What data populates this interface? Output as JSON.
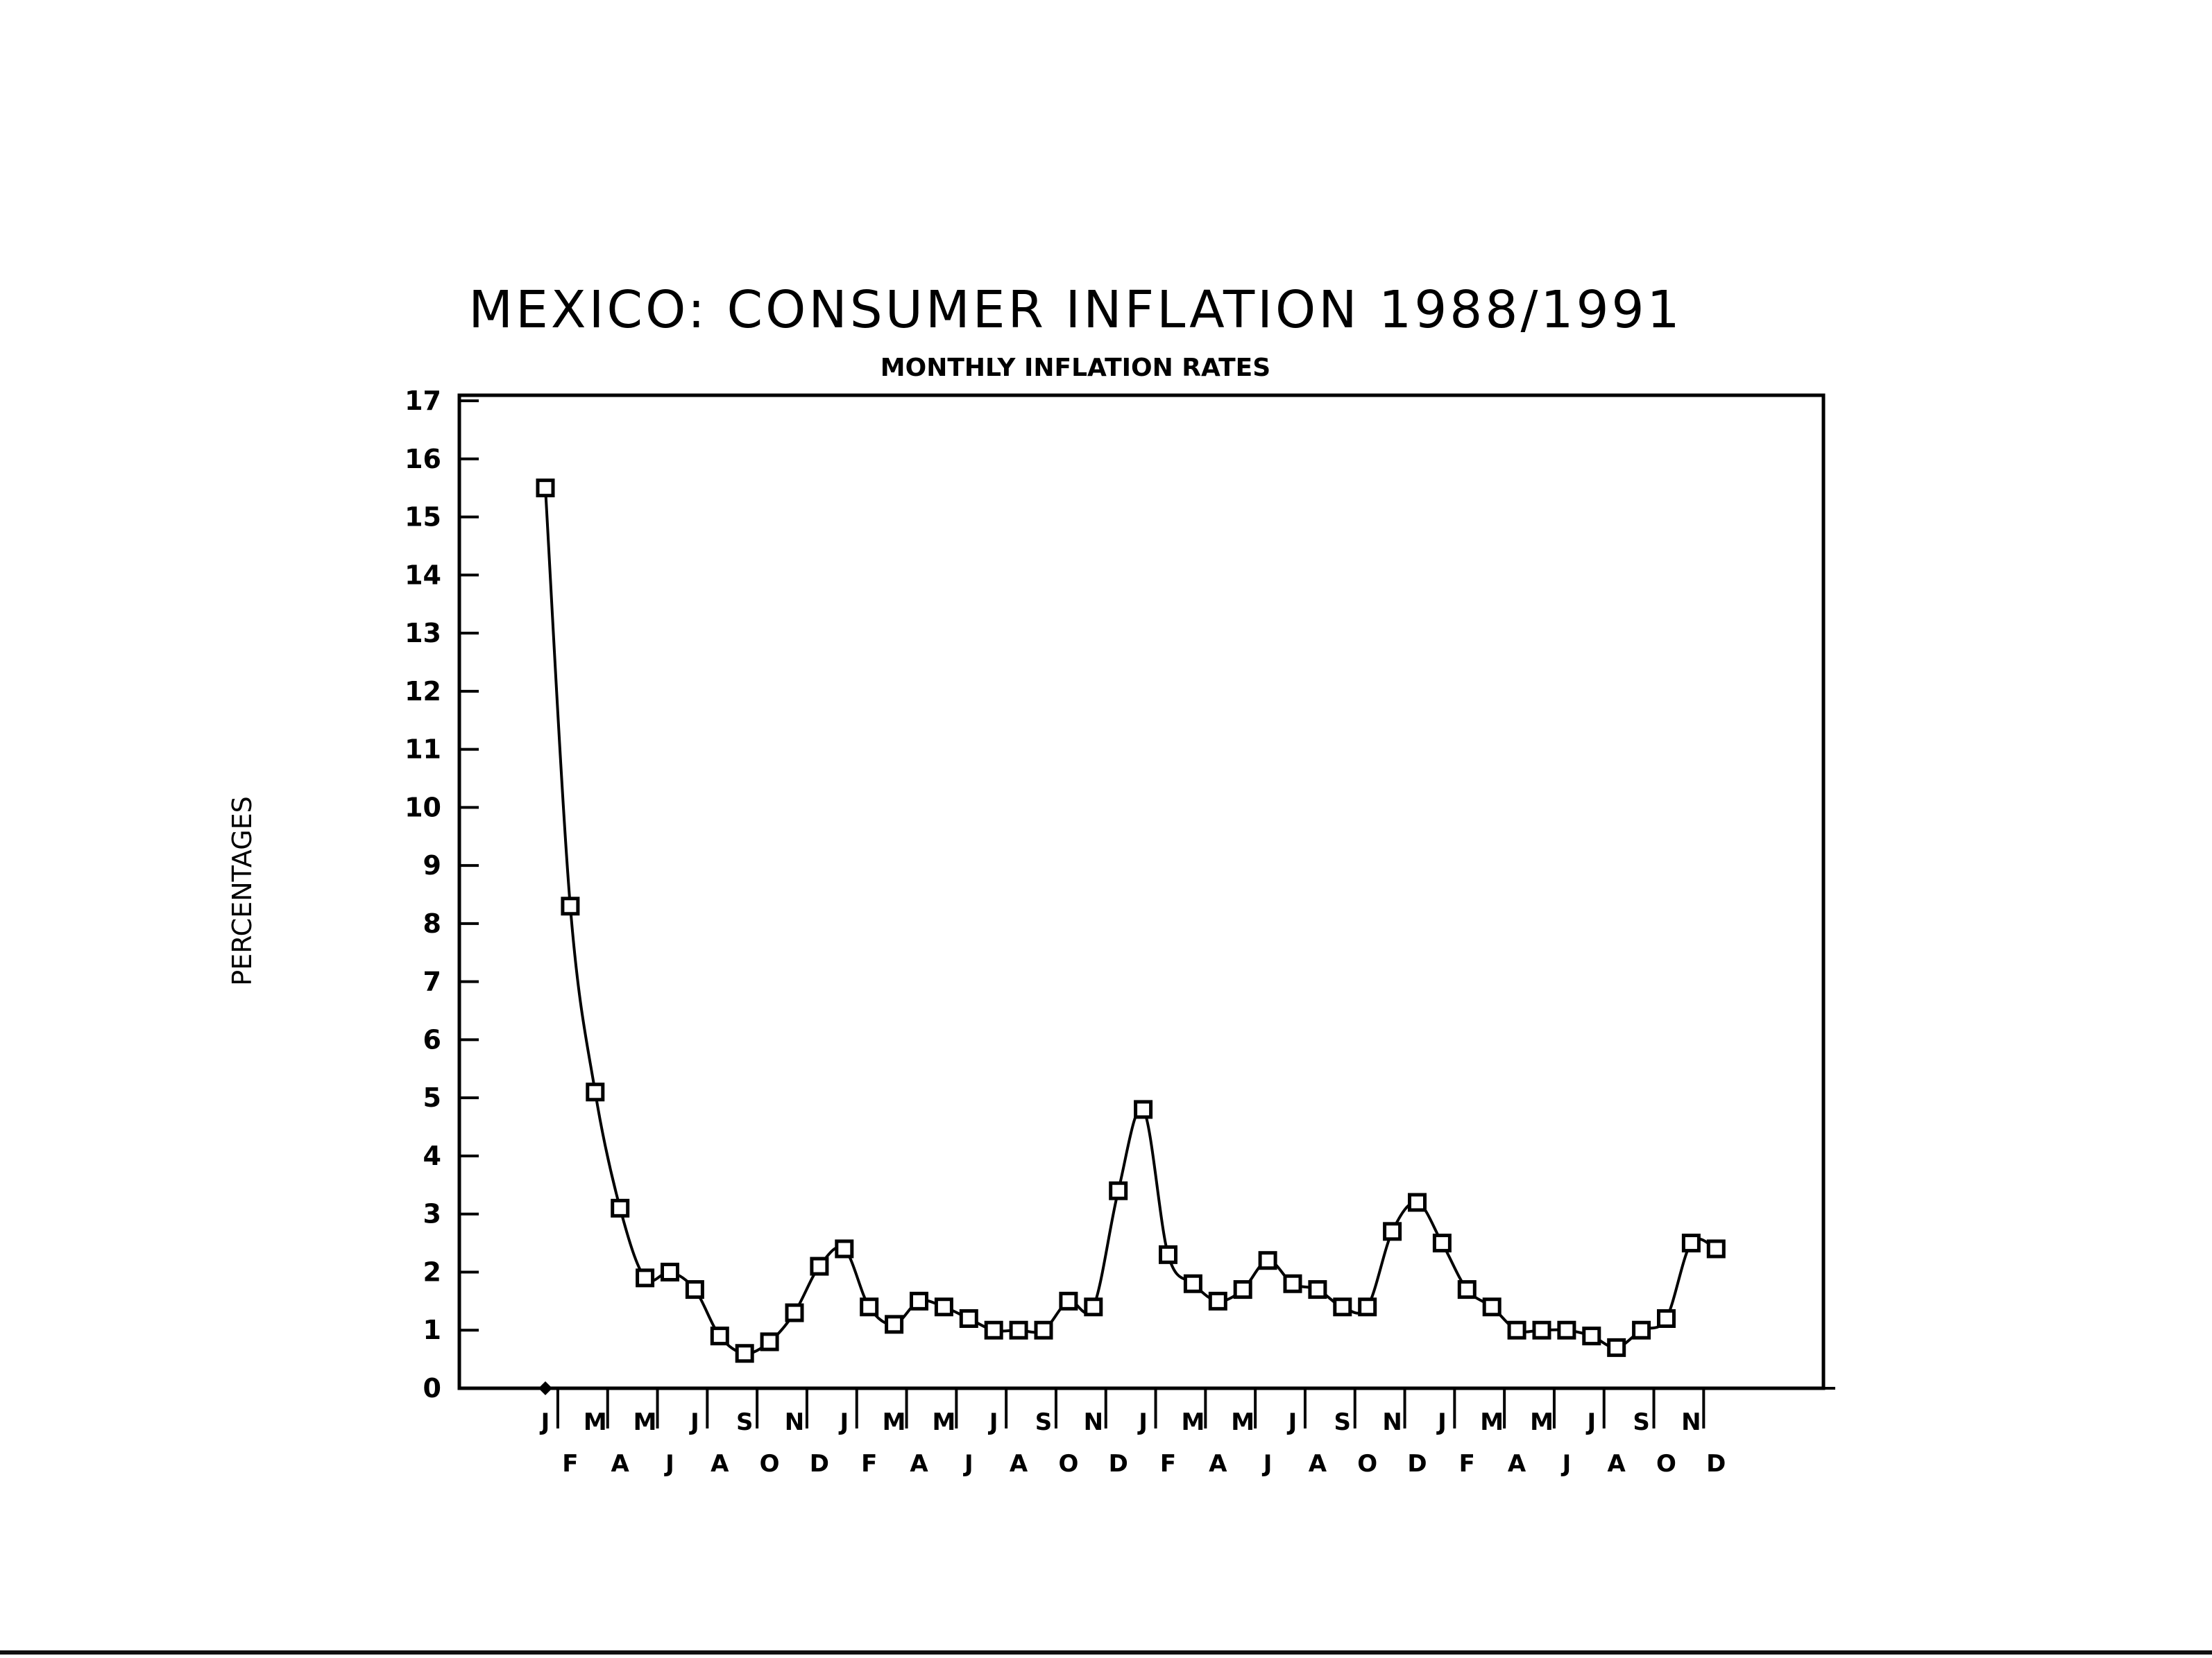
{
  "chart_data": {
    "type": "line",
    "title": "MEXICO: CONSUMER INFLATION 1988/1991",
    "subtitle": "MONTHLY INFLATION RATES",
    "xlabel": "",
    "ylabel": "PERCENTAGES",
    "ylim": [
      0,
      17
    ],
    "yticks": [
      "0",
      "1",
      "2",
      "3",
      "4",
      "5",
      "6",
      "7",
      "8",
      "9",
      "10",
      "11",
      "12",
      "13",
      "14",
      "15",
      "16",
      "17"
    ],
    "grid": false,
    "legend": "none",
    "x": [
      "J",
      "F",
      "M",
      "A",
      "M",
      "J",
      "J",
      "A",
      "S",
      "O",
      "N",
      "D",
      "J",
      "F",
      "M",
      "A",
      "M",
      "J",
      "J",
      "A",
      "S",
      "O",
      "N",
      "D",
      "J",
      "F",
      "M",
      "A",
      "M",
      "J",
      "J",
      "A",
      "S",
      "O",
      "N",
      "D",
      "J",
      "F",
      "M",
      "A",
      "M",
      "J",
      "J",
      "A",
      "S",
      "O",
      "N",
      "D"
    ],
    "series": [
      {
        "values": [
          15.5,
          8.3,
          5.1,
          3.1,
          1.9,
          2.0,
          1.7,
          0.9,
          0.6,
          0.8,
          1.3,
          2.1,
          2.4,
          1.4,
          1.1,
          1.5,
          1.4,
          1.2,
          1.0,
          1.0,
          1.0,
          1.5,
          1.4,
          3.4,
          4.8,
          2.3,
          1.8,
          1.5,
          1.7,
          2.2,
          1.8,
          1.7,
          1.4,
          1.4,
          2.7,
          3.2,
          2.5,
          1.7,
          1.4,
          1.0,
          1.0,
          1.0,
          0.9,
          0.7,
          1.0,
          1.2,
          2.5,
          2.4
        ]
      }
    ],
    "color": "#000000"
  }
}
